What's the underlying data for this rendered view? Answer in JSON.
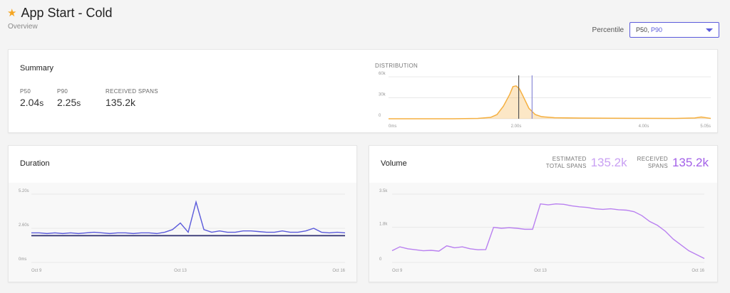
{
  "header": {
    "title": "App Start - Cold",
    "subtitle": "Overview"
  },
  "percentile": {
    "label": "Percentile",
    "p50": "P50,",
    "p90": "P90"
  },
  "summary": {
    "title": "Summary",
    "stats": [
      {
        "label": "P50",
        "value": "2.04",
        "unit": "s"
      },
      {
        "label": "P90",
        "value": "2.25",
        "unit": "s"
      },
      {
        "label": "RECEIVED SPANS",
        "value": "135.2k",
        "unit": ""
      }
    ],
    "distribution_label": "DISTRIBUTION"
  },
  "duration": {
    "title": "Duration"
  },
  "volume": {
    "title": "Volume",
    "estimated_label": "ESTIMATED\nTOTAL SPANS",
    "estimated_value": "135.2k",
    "received_label": "RECEIVED\nSPANS",
    "received_value": "135.2k"
  },
  "colors": {
    "accent": "#5a5adb",
    "distribution": "#f5b041",
    "volume_line": "#b980f0",
    "estimated_value": "#c9a0f3",
    "received_value": "#a360e8",
    "duration_p90": "#5a5adb",
    "duration_p50": "#2c2c6e"
  },
  "chart_data": [
    {
      "type": "area",
      "name": "distribution",
      "xlabels": [
        "0ms",
        "2.00s",
        "4.00s",
        "5.05s"
      ],
      "xticks": [
        0,
        2.0,
        4.0,
        5.05
      ],
      "ylabels": [
        "60k",
        "30k",
        "0"
      ],
      "yticks": [
        60,
        30,
        0
      ],
      "xlim": [
        0,
        5.05
      ],
      "ylim": [
        0,
        60
      ],
      "x": [
        0,
        0.5,
        1.0,
        1.4,
        1.6,
        1.7,
        1.8,
        1.9,
        1.95,
        2.0,
        2.05,
        2.1,
        2.2,
        2.3,
        2.4,
        2.6,
        3.0,
        3.5,
        4.0,
        4.5,
        4.8,
        4.9,
        5.0,
        5.05
      ],
      "values": [
        0,
        0,
        0,
        0.5,
        2,
        6,
        18,
        35,
        46,
        47,
        43,
        34,
        15,
        6,
        3,
        1.5,
        1,
        0.8,
        0.6,
        0.5,
        1.2,
        2.5,
        1.2,
        0.5
      ],
      "markers": [
        2.04,
        2.25
      ]
    },
    {
      "type": "line",
      "name": "duration",
      "xlabels": [
        "Oct 9",
        "Oct 13",
        "Oct 16"
      ],
      "xticks": [
        0,
        19,
        40
      ],
      "ylabels": [
        "5.20s",
        "2.60s",
        "0ms"
      ],
      "yticks": [
        5.2,
        2.6,
        0
      ],
      "xlim": [
        0,
        40
      ],
      "ylim": [
        0,
        5.2
      ],
      "series": [
        {
          "name": "P90",
          "values": [
            2.25,
            2.25,
            2.2,
            2.25,
            2.2,
            2.25,
            2.2,
            2.25,
            2.3,
            2.25,
            2.2,
            2.25,
            2.25,
            2.2,
            2.25,
            2.25,
            2.2,
            2.3,
            2.5,
            3.0,
            2.3,
            4.6,
            2.5,
            2.3,
            2.4,
            2.3,
            2.3,
            2.4,
            2.4,
            2.35,
            2.3,
            2.3,
            2.4,
            2.3,
            2.3,
            2.4,
            2.6,
            2.3,
            2.25,
            2.3,
            2.25
          ]
        },
        {
          "name": "P50",
          "values": [
            2.04,
            2.04,
            2.04,
            2.04,
            2.04,
            2.04,
            2.04,
            2.04,
            2.04,
            2.04,
            2.04,
            2.04,
            2.04,
            2.04,
            2.04,
            2.04,
            2.04,
            2.04,
            2.04,
            2.04,
            2.04,
            2.04,
            2.04,
            2.04,
            2.04,
            2.04,
            2.04,
            2.04,
            2.04,
            2.04,
            2.04,
            2.04,
            2.04,
            2.04,
            2.04,
            2.04,
            2.04,
            2.04,
            2.04,
            2.04,
            2.04
          ]
        }
      ]
    },
    {
      "type": "line",
      "name": "volume",
      "xlabels": [
        "Oct 9",
        "Oct 13",
        "Oct 16"
      ],
      "xticks": [
        0,
        19,
        40
      ],
      "ylabels": [
        "3.5k",
        "1.8k",
        "0"
      ],
      "yticks": [
        3.5,
        1.8,
        0
      ],
      "xlim": [
        0,
        40
      ],
      "ylim": [
        0,
        3.5
      ],
      "series": [
        {
          "name": "Volume",
          "values": [
            0.6,
            0.8,
            0.7,
            0.65,
            0.6,
            0.62,
            0.58,
            0.85,
            0.75,
            0.8,
            0.7,
            0.65,
            0.66,
            1.8,
            1.75,
            1.78,
            1.75,
            1.7,
            1.7,
            3.0,
            2.95,
            3.0,
            2.98,
            2.9,
            2.85,
            2.82,
            2.75,
            2.72,
            2.75,
            2.7,
            2.68,
            2.6,
            2.4,
            2.1,
            1.9,
            1.6,
            1.2,
            0.9,
            0.6,
            0.4,
            0.2
          ]
        }
      ]
    }
  ]
}
